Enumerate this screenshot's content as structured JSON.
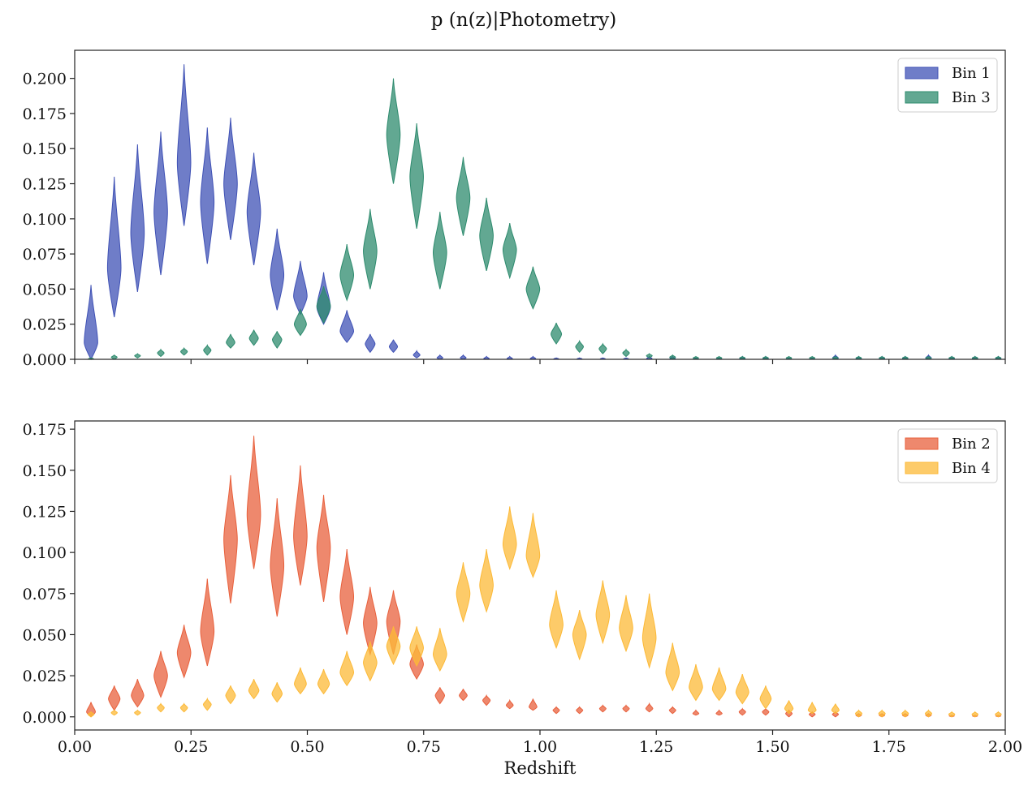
{
  "title": "p (n(z)|Photometry)",
  "chart_data": [
    {
      "type": "violin",
      "panel": "top",
      "xlabel": "",
      "ylabel": "",
      "xlim": [
        0.0,
        2.0
      ],
      "ylim": [
        0.0,
        0.22
      ],
      "yticks": [
        "0.000",
        "0.025",
        "0.050",
        "0.075",
        "0.100",
        "0.125",
        "0.150",
        "0.175",
        "0.200"
      ],
      "ytick_values": [
        0,
        0.025,
        0.05,
        0.075,
        0.1,
        0.125,
        0.15,
        0.175,
        0.2
      ],
      "legend_position": "upper-right",
      "series": [
        {
          "name": "Bin 1",
          "color": "#3f51b5",
          "x": [
            0.035,
            0.085,
            0.135,
            0.185,
            0.235,
            0.285,
            0.335,
            0.385,
            0.435,
            0.485,
            0.535,
            0.585,
            0.635,
            0.685,
            0.735,
            0.785,
            0.835,
            0.885,
            0.935,
            0.985,
            1.035,
            1.085,
            1.135,
            1.185,
            1.235,
            1.285,
            1.335,
            1.385,
            1.435,
            1.485,
            1.535,
            1.585,
            1.635,
            1.685,
            1.735,
            1.785,
            1.835,
            1.885,
            1.935,
            1.985
          ],
          "low": [
            0.0,
            0.03,
            0.048,
            0.06,
            0.095,
            0.068,
            0.085,
            0.067,
            0.035,
            0.032,
            0.025,
            0.012,
            0.005,
            0.005,
            0.001,
            0.0,
            0.0,
            0.0,
            0.0,
            0.0,
            0.0,
            0.0,
            0.0,
            0.0,
            0.0,
            0.0,
            0.0,
            0.0,
            0.0,
            0.0,
            0.0,
            0.0,
            0.0,
            0.0,
            0.0,
            0.0,
            0.0,
            0.0,
            0.0,
            0.0
          ],
          "high": [
            0.053,
            0.13,
            0.153,
            0.162,
            0.21,
            0.165,
            0.172,
            0.147,
            0.093,
            0.07,
            0.062,
            0.035,
            0.018,
            0.014,
            0.006,
            0.003,
            0.003,
            0.002,
            0.002,
            0.002,
            0.001,
            0.001,
            0.001,
            0.001,
            0.002,
            0.002,
            0.001,
            0.001,
            0.002,
            0.002,
            0.001,
            0.001,
            0.003,
            0.002,
            0.002,
            0.002,
            0.003,
            0.002,
            0.002,
            0.002
          ],
          "center": [
            0.012,
            0.065,
            0.09,
            0.105,
            0.14,
            0.112,
            0.125,
            0.105,
            0.06,
            0.045,
            0.037,
            0.02,
            0.011,
            0.009,
            0.003,
            0.001,
            0.001,
            0.0005,
            0.0005,
            0.0005,
            0.0003,
            0.0003,
            0.0003,
            0.0003,
            0.0005,
            0.0005,
            0.0003,
            0.0003,
            0.0005,
            0.0005,
            0.0003,
            0.0003,
            0.0008,
            0.0005,
            0.0005,
            0.0005,
            0.0008,
            0.0005,
            0.0005,
            0.0005
          ]
        },
        {
          "name": "Bin 3",
          "color": "#2e8b6e",
          "x": [
            0.035,
            0.085,
            0.135,
            0.185,
            0.235,
            0.285,
            0.335,
            0.385,
            0.435,
            0.485,
            0.535,
            0.585,
            0.635,
            0.685,
            0.735,
            0.785,
            0.835,
            0.885,
            0.935,
            0.985,
            1.035,
            1.085,
            1.135,
            1.185,
            1.235,
            1.285,
            1.335,
            1.385,
            1.435,
            1.485,
            1.535,
            1.585,
            1.635,
            1.685,
            1.735,
            1.785,
            1.835,
            1.885,
            1.935,
            1.985
          ],
          "low": [
            0.0,
            0.0,
            0.001,
            0.002,
            0.003,
            0.003,
            0.008,
            0.01,
            0.008,
            0.017,
            0.026,
            0.042,
            0.05,
            0.125,
            0.093,
            0.05,
            0.088,
            0.063,
            0.058,
            0.036,
            0.011,
            0.005,
            0.004,
            0.002,
            0.001,
            0.0,
            0.0,
            0.0,
            0.0,
            0.0,
            0.0,
            0.0,
            0.0,
            0.0,
            0.0,
            0.0,
            0.0,
            0.0,
            0.0,
            0.0
          ],
          "high": [
            0.001,
            0.003,
            0.004,
            0.007,
            0.008,
            0.01,
            0.018,
            0.021,
            0.02,
            0.036,
            0.052,
            0.082,
            0.107,
            0.2,
            0.168,
            0.105,
            0.144,
            0.115,
            0.097,
            0.066,
            0.026,
            0.013,
            0.011,
            0.007,
            0.004,
            0.003,
            0.002,
            0.002,
            0.002,
            0.002,
            0.002,
            0.002,
            0.002,
            0.002,
            0.002,
            0.002,
            0.002,
            0.002,
            0.002,
            0.002
          ],
          "center": [
            0.0005,
            0.0015,
            0.0025,
            0.0045,
            0.0055,
            0.0065,
            0.012,
            0.015,
            0.014,
            0.025,
            0.038,
            0.06,
            0.077,
            0.16,
            0.13,
            0.076,
            0.115,
            0.088,
            0.078,
            0.05,
            0.018,
            0.009,
            0.0075,
            0.0045,
            0.0025,
            0.0015,
            0.001,
            0.001,
            0.001,
            0.001,
            0.001,
            0.001,
            0.001,
            0.001,
            0.001,
            0.001,
            0.001,
            0.001,
            0.001,
            0.001
          ]
        }
      ]
    },
    {
      "type": "violin",
      "panel": "bottom",
      "xlabel": "Redshift",
      "ylabel": "",
      "xlim": [
        0.0,
        2.0
      ],
      "ylim": [
        -0.008,
        0.18
      ],
      "xticks": [
        "0.00",
        "0.25",
        "0.50",
        "0.75",
        "1.00",
        "1.25",
        "1.50",
        "1.75",
        "2.00"
      ],
      "xtick_values": [
        0,
        0.25,
        0.5,
        0.75,
        1.0,
        1.25,
        1.5,
        1.75,
        2.0
      ],
      "yticks": [
        "0.000",
        "0.025",
        "0.050",
        "0.075",
        "0.100",
        "0.125",
        "0.150",
        "0.175"
      ],
      "ytick_values": [
        0,
        0.025,
        0.05,
        0.075,
        0.1,
        0.125,
        0.15,
        0.175
      ],
      "legend_position": "upper-right",
      "series": [
        {
          "name": "Bin 2",
          "color": "#e8603c",
          "x": [
            0.035,
            0.085,
            0.135,
            0.185,
            0.235,
            0.285,
            0.335,
            0.385,
            0.435,
            0.485,
            0.535,
            0.585,
            0.635,
            0.685,
            0.735,
            0.785,
            0.835,
            0.885,
            0.935,
            0.985,
            1.035,
            1.085,
            1.135,
            1.185,
            1.235,
            1.285,
            1.335,
            1.385,
            1.435,
            1.485,
            1.535,
            1.585,
            1.635,
            1.685,
            1.735,
            1.785,
            1.835,
            1.885,
            1.935,
            1.985
          ],
          "low": [
            0.0,
            0.004,
            0.006,
            0.012,
            0.024,
            0.031,
            0.069,
            0.09,
            0.061,
            0.08,
            0.07,
            0.05,
            0.038,
            0.038,
            0.023,
            0.008,
            0.01,
            0.007,
            0.005,
            0.004,
            0.002,
            0.002,
            0.003,
            0.003,
            0.003,
            0.002,
            0.001,
            0.001,
            0.001,
            0.001,
            0.0,
            0.0,
            0.0,
            0.0,
            0.0,
            0.0,
            0.0,
            0.0,
            0.0,
            0.0
          ],
          "high": [
            0.009,
            0.019,
            0.023,
            0.04,
            0.056,
            0.084,
            0.147,
            0.171,
            0.133,
            0.153,
            0.135,
            0.102,
            0.079,
            0.077,
            0.044,
            0.018,
            0.017,
            0.013,
            0.01,
            0.011,
            0.006,
            0.006,
            0.007,
            0.007,
            0.008,
            0.006,
            0.004,
            0.004,
            0.005,
            0.005,
            0.004,
            0.003,
            0.003,
            0.002,
            0.002,
            0.002,
            0.002,
            0.001,
            0.001,
            0.001
          ],
          "center": [
            0.003,
            0.011,
            0.013,
            0.025,
            0.039,
            0.052,
            0.108,
            0.123,
            0.092,
            0.11,
            0.103,
            0.073,
            0.057,
            0.058,
            0.032,
            0.013,
            0.013,
            0.01,
            0.007,
            0.006,
            0.004,
            0.004,
            0.005,
            0.005,
            0.005,
            0.004,
            0.002,
            0.002,
            0.003,
            0.003,
            0.002,
            0.0015,
            0.0015,
            0.001,
            0.001,
            0.001,
            0.001,
            0.0005,
            0.0005,
            0.0005
          ]
        },
        {
          "name": "Bin 4",
          "color": "#fcb937",
          "x": [
            0.035,
            0.085,
            0.135,
            0.185,
            0.235,
            0.285,
            0.335,
            0.385,
            0.435,
            0.485,
            0.535,
            0.585,
            0.635,
            0.685,
            0.735,
            0.785,
            0.835,
            0.885,
            0.935,
            0.985,
            1.035,
            1.085,
            1.135,
            1.185,
            1.235,
            1.285,
            1.335,
            1.385,
            1.435,
            1.485,
            1.535,
            1.585,
            1.635,
            1.685,
            1.735,
            1.785,
            1.835,
            1.885,
            1.935,
            1.985
          ],
          "low": [
            0.0,
            0.001,
            0.001,
            0.003,
            0.003,
            0.004,
            0.008,
            0.011,
            0.009,
            0.014,
            0.014,
            0.019,
            0.022,
            0.032,
            0.031,
            0.028,
            0.058,
            0.064,
            0.09,
            0.085,
            0.042,
            0.035,
            0.045,
            0.04,
            0.03,
            0.016,
            0.01,
            0.01,
            0.008,
            0.005,
            0.002,
            0.002,
            0.002,
            0.0,
            0.0,
            0.0,
            0.0,
            0.0,
            0.0,
            0.0
          ],
          "high": [
            0.003,
            0.004,
            0.004,
            0.008,
            0.008,
            0.011,
            0.019,
            0.023,
            0.021,
            0.03,
            0.029,
            0.04,
            0.046,
            0.055,
            0.055,
            0.054,
            0.094,
            0.102,
            0.128,
            0.124,
            0.077,
            0.065,
            0.083,
            0.074,
            0.075,
            0.045,
            0.032,
            0.03,
            0.026,
            0.019,
            0.01,
            0.009,
            0.008,
            0.004,
            0.004,
            0.004,
            0.004,
            0.003,
            0.003,
            0.003
          ],
          "center": [
            0.0015,
            0.0025,
            0.0025,
            0.0055,
            0.0055,
            0.0075,
            0.013,
            0.016,
            0.014,
            0.02,
            0.02,
            0.027,
            0.033,
            0.043,
            0.042,
            0.038,
            0.075,
            0.08,
            0.105,
            0.098,
            0.056,
            0.05,
            0.062,
            0.054,
            0.048,
            0.027,
            0.018,
            0.017,
            0.015,
            0.011,
            0.005,
            0.004,
            0.004,
            0.002,
            0.002,
            0.002,
            0.002,
            0.0015,
            0.0015,
            0.0015
          ]
        }
      ]
    }
  ]
}
